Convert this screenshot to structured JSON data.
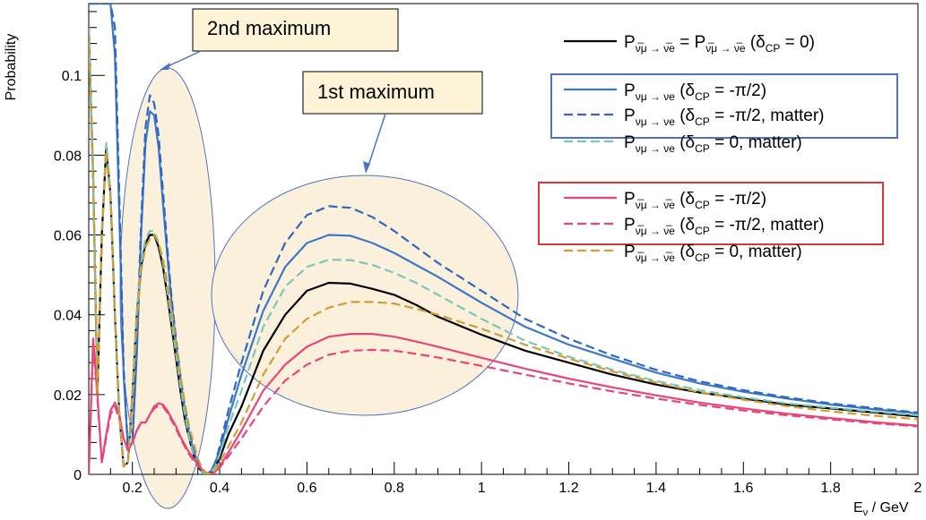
{
  "chart_data": {
    "type": "line",
    "xlabel": "E",
    "xlabel_sub": "ν",
    "xlabel_unit": " / GeV",
    "ylabel": "Probability",
    "xlim": [
      0.1,
      2.0
    ],
    "ylim": [
      0,
      0.118
    ],
    "x_ticks": [
      {
        "value": 0.2,
        "label": "0.2"
      },
      {
        "value": 0.4,
        "label": "0.4"
      },
      {
        "value": 0.6,
        "label": "0.6"
      },
      {
        "value": 0.8,
        "label": "0.8"
      },
      {
        "value": 1.0,
        "label": "1"
      },
      {
        "value": 1.2,
        "label": "1.2"
      },
      {
        "value": 1.4,
        "label": "1.4"
      },
      {
        "value": 1.6,
        "label": "1.6"
      },
      {
        "value": 1.8,
        "label": "1.8"
      },
      {
        "value": 2.0,
        "label": "2"
      }
    ],
    "y_ticks": [
      {
        "value": 0,
        "label": "0"
      },
      {
        "value": 0.02,
        "label": "0.02"
      },
      {
        "value": 0.04,
        "label": "0.04"
      },
      {
        "value": 0.06,
        "label": "0.06"
      },
      {
        "value": 0.08,
        "label": "0.08"
      },
      {
        "value": 0.1,
        "label": "0.1"
      }
    ],
    "legend_position": "top-right",
    "series": [
      {
        "color": "#000000",
        "dash": "solid",
        "legend": {
          "pre": "P",
          "sub": "ν̅μ → ν̅e",
          "mid": " = P",
          "sub2": "ν̅μ → ν̅e",
          "post": " (δ",
          "cp": "CP",
          "tail": " = 0)"
        },
        "x": [
          0.1,
          0.11,
          0.12,
          0.13,
          0.14,
          0.15,
          0.16,
          0.17,
          0.18,
          0.19,
          0.2,
          0.21,
          0.22,
          0.23,
          0.24,
          0.25,
          0.26,
          0.27,
          0.28,
          0.29,
          0.3,
          0.31,
          0.32,
          0.33,
          0.34,
          0.35,
          0.36,
          0.37,
          0.38,
          0.39,
          0.4,
          0.42,
          0.45,
          0.5,
          0.55,
          0.6,
          0.65,
          0.7,
          0.75,
          0.8,
          0.85,
          0.9,
          1.0,
          1.1,
          1.2,
          1.3,
          1.4,
          1.5,
          1.6,
          1.7,
          1.8,
          1.9,
          2.0
        ],
        "y": [
          0.112,
          0.075,
          0.02,
          0.06,
          0.082,
          0.07,
          0.04,
          0.015,
          0.002,
          0.003,
          0.02,
          0.04,
          0.052,
          0.058,
          0.06,
          0.06,
          0.057,
          0.052,
          0.045,
          0.037,
          0.029,
          0.021,
          0.014,
          0.009,
          0.005,
          0.002,
          0.0005,
          0.0,
          0.0005,
          0.002,
          0.004,
          0.01,
          0.017,
          0.031,
          0.04,
          0.046,
          0.048,
          0.0478,
          0.0465,
          0.045,
          0.0425,
          0.0395,
          0.035,
          0.031,
          0.028,
          0.025,
          0.0225,
          0.0205,
          0.019,
          0.0175,
          0.0165,
          0.0155,
          0.0145
        ]
      },
      {
        "color": "#3a78c9",
        "dash": "solid",
        "legend": {
          "pre": "P",
          "sub": "νμ → νe",
          "post": " (δ",
          "cp": "CP",
          "tail": " = -π/2)"
        },
        "x": [
          0.1,
          0.11,
          0.12,
          0.13,
          0.14,
          0.15,
          0.16,
          0.17,
          0.18,
          0.19,
          0.2,
          0.21,
          0.22,
          0.23,
          0.24,
          0.25,
          0.26,
          0.27,
          0.28,
          0.29,
          0.3,
          0.31,
          0.32,
          0.33,
          0.34,
          0.35,
          0.36,
          0.37,
          0.38,
          0.39,
          0.4,
          0.42,
          0.45,
          0.5,
          0.55,
          0.6,
          0.65,
          0.7,
          0.75,
          0.8,
          0.85,
          0.9,
          1.0,
          1.1,
          1.2,
          1.3,
          1.4,
          1.5,
          1.6,
          1.7,
          1.8,
          1.9,
          2.0
        ],
        "y": [
          0.118,
          0.118,
          0.118,
          0.118,
          0.118,
          0.118,
          0.105,
          0.065,
          0.025,
          0.006,
          0.008,
          0.03,
          0.06,
          0.083,
          0.091,
          0.09,
          0.082,
          0.068,
          0.055,
          0.043,
          0.033,
          0.024,
          0.016,
          0.01,
          0.006,
          0.003,
          0.001,
          0.0,
          0.0008,
          0.003,
          0.006,
          0.014,
          0.025,
          0.041,
          0.052,
          0.058,
          0.06,
          0.0598,
          0.058,
          0.0555,
          0.0525,
          0.0495,
          0.043,
          0.037,
          0.0325,
          0.029,
          0.0255,
          0.0228,
          0.0207,
          0.019,
          0.0175,
          0.0163,
          0.0153
        ]
      },
      {
        "color": "#2f67c0",
        "dash": "dashed",
        "legend": {
          "pre": "P",
          "sub": "νμ → νe",
          "post": " (δ",
          "cp": "CP",
          "tail": " = -π/2, matter)"
        },
        "x": [
          0.1,
          0.11,
          0.12,
          0.13,
          0.14,
          0.15,
          0.16,
          0.17,
          0.18,
          0.19,
          0.2,
          0.21,
          0.22,
          0.23,
          0.24,
          0.25,
          0.26,
          0.27,
          0.28,
          0.29,
          0.3,
          0.31,
          0.32,
          0.33,
          0.34,
          0.35,
          0.36,
          0.37,
          0.38,
          0.39,
          0.4,
          0.42,
          0.45,
          0.5,
          0.55,
          0.6,
          0.65,
          0.7,
          0.75,
          0.8,
          0.85,
          0.9,
          1.0,
          1.1,
          1.2,
          1.3,
          1.4,
          1.5,
          1.6,
          1.7,
          1.8,
          1.9,
          2.0
        ],
        "y": [
          0.118,
          0.118,
          0.118,
          0.118,
          0.118,
          0.118,
          0.112,
          0.07,
          0.027,
          0.006,
          0.008,
          0.032,
          0.063,
          0.087,
          0.095,
          0.093,
          0.085,
          0.071,
          0.057,
          0.044,
          0.034,
          0.025,
          0.017,
          0.011,
          0.006,
          0.003,
          0.001,
          0.0,
          0.0008,
          0.003,
          0.007,
          0.016,
          0.028,
          0.046,
          0.058,
          0.065,
          0.0672,
          0.0668,
          0.0645,
          0.061,
          0.057,
          0.053,
          0.046,
          0.039,
          0.034,
          0.0298,
          0.0262,
          0.0233,
          0.0211,
          0.0193,
          0.0178,
          0.0166,
          0.0155
        ]
      },
      {
        "color": "#78c8b8",
        "dash": "dashed",
        "legend": {
          "pre": "P",
          "sub": "νμ → νe",
          "post": " (δ",
          "cp": "CP",
          "tail": " = 0, matter)"
        },
        "x": [
          0.1,
          0.11,
          0.12,
          0.13,
          0.14,
          0.15,
          0.16,
          0.17,
          0.18,
          0.19,
          0.2,
          0.21,
          0.22,
          0.23,
          0.24,
          0.25,
          0.26,
          0.27,
          0.28,
          0.29,
          0.3,
          0.31,
          0.32,
          0.33,
          0.34,
          0.35,
          0.36,
          0.37,
          0.38,
          0.39,
          0.4,
          0.42,
          0.45,
          0.5,
          0.55,
          0.6,
          0.65,
          0.7,
          0.75,
          0.8,
          0.85,
          0.9,
          1.0,
          1.1,
          1.2,
          1.3,
          1.4,
          1.5,
          1.6,
          1.7,
          1.8,
          1.9,
          2.0
        ],
        "y": [
          0.112,
          0.076,
          0.021,
          0.061,
          0.083,
          0.071,
          0.041,
          0.015,
          0.002,
          0.003,
          0.021,
          0.041,
          0.053,
          0.059,
          0.061,
          0.061,
          0.058,
          0.053,
          0.046,
          0.038,
          0.03,
          0.022,
          0.015,
          0.009,
          0.005,
          0.002,
          0.0005,
          0.0,
          0.0005,
          0.002,
          0.005,
          0.012,
          0.021,
          0.037,
          0.047,
          0.052,
          0.0538,
          0.0537,
          0.0525,
          0.0505,
          0.048,
          0.045,
          0.039,
          0.0335,
          0.0295,
          0.0262,
          0.0234,
          0.0211,
          0.0193,
          0.0178,
          0.0167,
          0.0157,
          0.0148
        ]
      },
      {
        "color": "#e8457a",
        "dash": "solid",
        "legend": {
          "pre": "P",
          "sub": "ν̅μ → ν̅e",
          "post": " (δ",
          "cp": "CP",
          "tail": " = -π/2)"
        },
        "x": [
          0.1,
          0.11,
          0.12,
          0.13,
          0.14,
          0.15,
          0.16,
          0.17,
          0.18,
          0.19,
          0.2,
          0.21,
          0.22,
          0.23,
          0.24,
          0.25,
          0.26,
          0.27,
          0.28,
          0.29,
          0.3,
          0.31,
          0.32,
          0.33,
          0.34,
          0.35,
          0.36,
          0.37,
          0.38,
          0.39,
          0.4,
          0.42,
          0.45,
          0.5,
          0.55,
          0.6,
          0.65,
          0.7,
          0.75,
          0.8,
          0.85,
          0.9,
          1.0,
          1.1,
          1.2,
          1.3,
          1.4,
          1.5,
          1.6,
          1.7,
          1.8,
          1.9,
          2.0
        ],
        "y": [
          0.0,
          0.034,
          0.02,
          0.003,
          0.01,
          0.016,
          0.018,
          0.015,
          0.009,
          0.006,
          0.008,
          0.011,
          0.013,
          0.013,
          0.015,
          0.017,
          0.0178,
          0.0175,
          0.016,
          0.014,
          0.012,
          0.0095,
          0.0075,
          0.0055,
          0.004,
          0.0025,
          0.0012,
          0.0004,
          0.0001,
          0.0006,
          0.002,
          0.0055,
          0.011,
          0.021,
          0.0275,
          0.032,
          0.0345,
          0.0352,
          0.0352,
          0.0345,
          0.0333,
          0.032,
          0.0292,
          0.0265,
          0.024,
          0.0218,
          0.0198,
          0.018,
          0.0165,
          0.0152,
          0.0141,
          0.0131,
          0.0122
        ]
      },
      {
        "color": "#e8457a",
        "dash": "dashed",
        "legend": {
          "pre": "P",
          "sub": "ν̅μ → ν̅e",
          "post": " (δ",
          "cp": "CP",
          "tail": " = -π/2, matter)"
        },
        "x": [
          0.1,
          0.11,
          0.12,
          0.13,
          0.14,
          0.15,
          0.16,
          0.17,
          0.18,
          0.19,
          0.2,
          0.21,
          0.22,
          0.23,
          0.24,
          0.25,
          0.26,
          0.27,
          0.28,
          0.29,
          0.3,
          0.31,
          0.32,
          0.33,
          0.34,
          0.35,
          0.36,
          0.37,
          0.38,
          0.39,
          0.4,
          0.42,
          0.45,
          0.5,
          0.55,
          0.6,
          0.65,
          0.7,
          0.75,
          0.8,
          0.85,
          0.9,
          1.0,
          1.1,
          1.2,
          1.3,
          1.4,
          1.5,
          1.6,
          1.7,
          1.8,
          1.9,
          2.0
        ],
        "y": [
          0.0,
          0.033,
          0.019,
          0.003,
          0.009,
          0.015,
          0.017,
          0.014,
          0.009,
          0.006,
          0.008,
          0.011,
          0.013,
          0.013,
          0.015,
          0.0165,
          0.0172,
          0.017,
          0.0155,
          0.0135,
          0.0115,
          0.009,
          0.007,
          0.005,
          0.0035,
          0.0022,
          0.001,
          0.0003,
          0.0001,
          0.0005,
          0.0017,
          0.0045,
          0.009,
          0.017,
          0.0235,
          0.0275,
          0.03,
          0.031,
          0.0312,
          0.031,
          0.0302,
          0.0293,
          0.0272,
          0.025,
          0.0228,
          0.0208,
          0.019,
          0.0174,
          0.016,
          0.0148,
          0.0138,
          0.0128,
          0.012
        ]
      },
      {
        "color": "#cf9d33",
        "dash": "dashed",
        "legend": {
          "pre": "P",
          "sub": "ν̅μ → ν̅e",
          "post": " (δ",
          "cp": "CP",
          "tail": " = 0, matter)"
        },
        "x": [
          0.1,
          0.11,
          0.12,
          0.13,
          0.14,
          0.15,
          0.16,
          0.17,
          0.18,
          0.19,
          0.2,
          0.21,
          0.22,
          0.23,
          0.24,
          0.25,
          0.26,
          0.27,
          0.28,
          0.29,
          0.3,
          0.31,
          0.32,
          0.33,
          0.34,
          0.35,
          0.36,
          0.37,
          0.38,
          0.39,
          0.4,
          0.42,
          0.45,
          0.5,
          0.55,
          0.6,
          0.65,
          0.7,
          0.75,
          0.8,
          0.85,
          0.9,
          1.0,
          1.1,
          1.2,
          1.3,
          1.4,
          1.5,
          1.6,
          1.7,
          1.8,
          1.9,
          2.0
        ],
        "y": [
          0.11,
          0.074,
          0.02,
          0.059,
          0.081,
          0.069,
          0.04,
          0.015,
          0.002,
          0.003,
          0.019,
          0.039,
          0.051,
          0.057,
          0.059,
          0.06,
          0.058,
          0.054,
          0.048,
          0.041,
          0.033,
          0.025,
          0.018,
          0.012,
          0.008,
          0.004,
          0.0015,
          0.0003,
          0.0,
          0.001,
          0.003,
          0.007,
          0.013,
          0.025,
          0.034,
          0.039,
          0.0418,
          0.0432,
          0.0432,
          0.0428,
          0.0415,
          0.04,
          0.0365,
          0.0325,
          0.029,
          0.0258,
          0.023,
          0.0206,
          0.0187,
          0.0171,
          0.0158,
          0.0147,
          0.0138
        ]
      }
    ],
    "callouts": [
      {
        "text": "2nd maximum"
      },
      {
        "text": "1st maximum"
      }
    ]
  },
  "colors": {
    "ellipse_fill": "#fbf0dc",
    "ellipse_stroke": "#4d73c2",
    "callout_fill": "#fdf3d6",
    "blue_box": "#4d73c2",
    "red_box": "#d9363e"
  }
}
